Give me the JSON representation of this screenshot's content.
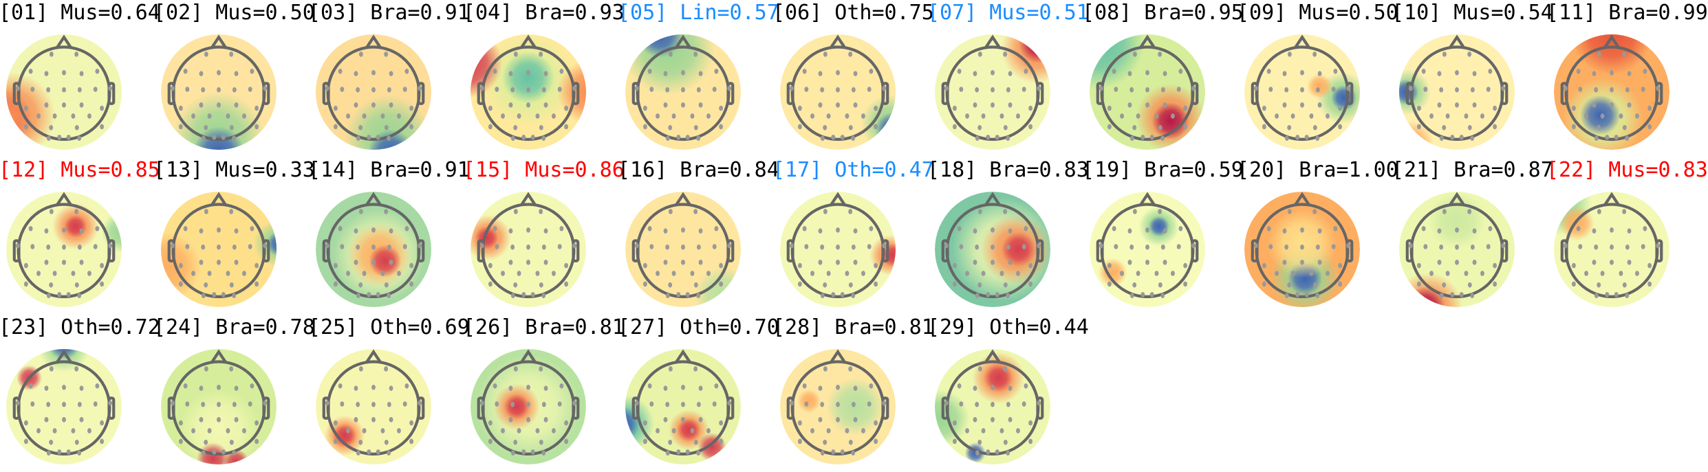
{
  "colors": {
    "default": "#000000",
    "flag_blue": "#1a8cff",
    "flag_red": "#ff0000",
    "head_outline": "#666666",
    "electrode": "#999999"
  },
  "chart_data": {
    "type": "heatmap",
    "subtype": "scalp-topomap-grid",
    "colormap": "Spectral_r",
    "grid": {
      "columns": 11,
      "rows": 3
    },
    "components": [
      {
        "label": "[01] Mus=0.64",
        "class": "Mus",
        "score": 0.64,
        "color": "default"
      },
      {
        "label": "[02] Mus=0.50",
        "class": "Mus",
        "score": 0.5,
        "color": "default"
      },
      {
        "label": "[03] Bra=0.91",
        "class": "Bra",
        "score": 0.91,
        "color": "default"
      },
      {
        "label": "[04] Bra=0.93",
        "class": "Bra",
        "score": 0.93,
        "color": "default"
      },
      {
        "label": "[05] Lin=0.57",
        "class": "Lin",
        "score": 0.57,
        "color": "flag_blue"
      },
      {
        "label": "[06] Oth=0.75",
        "class": "Oth",
        "score": 0.75,
        "color": "default"
      },
      {
        "label": "[07] Mus=0.51",
        "class": "Mus",
        "score": 0.51,
        "color": "flag_blue"
      },
      {
        "label": "[08] Bra=0.95",
        "class": "Bra",
        "score": 0.95,
        "color": "default"
      },
      {
        "label": "[09] Mus=0.50",
        "class": "Mus",
        "score": 0.5,
        "color": "default"
      },
      {
        "label": "[10] Mus=0.54",
        "class": "Mus",
        "score": 0.54,
        "color": "default"
      },
      {
        "label": "[11] Bra=0.99",
        "class": "Bra",
        "score": 0.99,
        "color": "default"
      },
      {
        "label": "[12] Mus=0.85",
        "class": "Mus",
        "score": 0.85,
        "color": "flag_red"
      },
      {
        "label": "[13] Mus=0.33",
        "class": "Mus",
        "score": 0.33,
        "color": "default"
      },
      {
        "label": "[14] Bra=0.91",
        "class": "Bra",
        "score": 0.91,
        "color": "default"
      },
      {
        "label": "[15] Mus=0.86",
        "class": "Mus",
        "score": 0.86,
        "color": "flag_red"
      },
      {
        "label": "[16] Bra=0.84",
        "class": "Bra",
        "score": 0.84,
        "color": "default"
      },
      {
        "label": "[17] Oth=0.47",
        "class": "Oth",
        "score": 0.47,
        "color": "flag_blue"
      },
      {
        "label": "[18] Bra=0.83",
        "class": "Bra",
        "score": 0.83,
        "color": "default"
      },
      {
        "label": "[19] Bra=0.59",
        "class": "Bra",
        "score": 0.59,
        "color": "default"
      },
      {
        "label": "[20] Bra=1.00",
        "class": "Bra",
        "score": 1.0,
        "color": "default"
      },
      {
        "label": "[21] Bra=0.87",
        "class": "Bra",
        "score": 0.87,
        "color": "default"
      },
      {
        "label": "[22] Mus=0.83",
        "class": "Mus",
        "score": 0.83,
        "color": "flag_red"
      },
      {
        "label": "[23] Oth=0.72",
        "class": "Oth",
        "score": 0.72,
        "color": "default"
      },
      {
        "label": "[24] Bra=0.78",
        "class": "Bra",
        "score": 0.78,
        "color": "default"
      },
      {
        "label": "[25] Oth=0.69",
        "class": "Oth",
        "score": 0.69,
        "color": "default"
      },
      {
        "label": "[26] Bra=0.81",
        "class": "Bra",
        "score": 0.81,
        "color": "default"
      },
      {
        "label": "[27] Oth=0.70",
        "class": "Oth",
        "score": 0.7,
        "color": "default"
      },
      {
        "label": "[28] Bra=0.81",
        "class": "Bra",
        "score": 0.81,
        "color": "default"
      },
      {
        "label": "[29] Oth=0.44",
        "class": "Oth",
        "score": 0.44,
        "color": "default"
      }
    ]
  }
}
